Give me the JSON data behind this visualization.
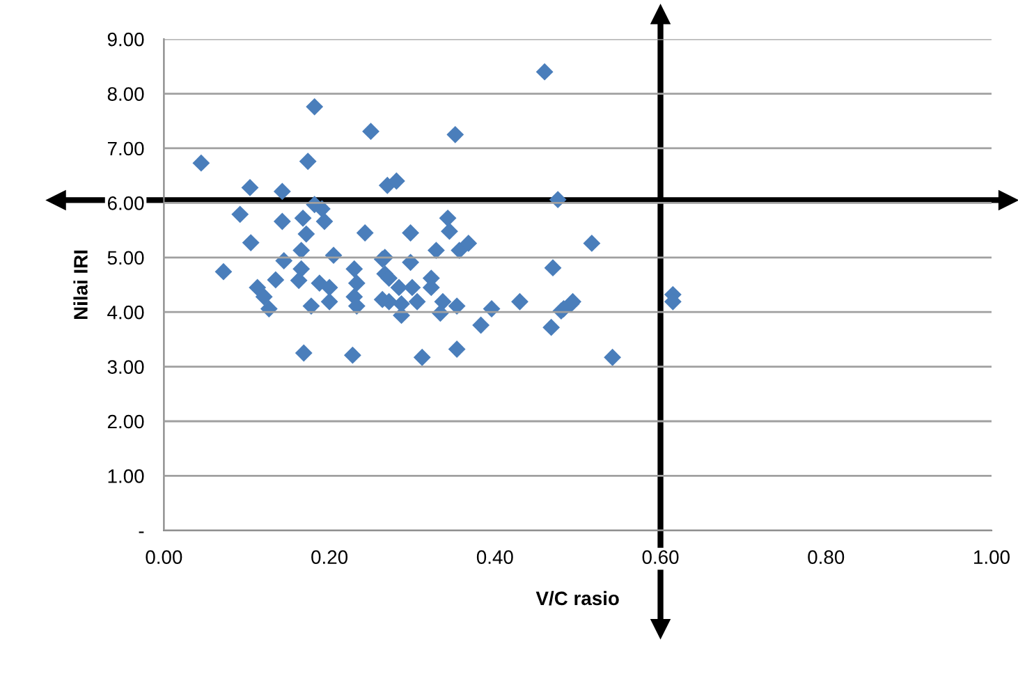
{
  "chart_data": {
    "type": "scatter",
    "xlabel": "V/C rasio",
    "ylabel": "Nilai IRI",
    "series": [
      {
        "color": "#4a7ebb",
        "x": [
          0.182,
          0.25,
          0.045,
          0.174,
          0.104,
          0.143,
          0.27,
          0.281,
          0.182,
          0.191,
          0.092,
          0.143,
          0.168,
          0.194,
          0.172,
          0.243,
          0.298,
          0.105,
          0.166,
          0.205,
          0.145,
          0.072,
          0.135,
          0.166,
          0.113,
          0.121,
          0.127,
          0.163,
          0.188,
          0.2,
          0.178,
          0.2,
          0.23,
          0.233,
          0.23,
          0.233,
          0.264,
          0.267,
          0.272,
          0.287,
          0.298,
          0.3,
          0.306,
          0.169,
          0.228,
          0.312,
          0.352,
          0.476,
          0.343,
          0.345,
          0.329,
          0.357,
          0.368,
          0.517,
          0.267,
          0.272,
          0.284,
          0.323,
          0.323,
          0.47,
          0.264,
          0.287,
          0.337,
          0.354,
          0.334,
          0.396,
          0.43,
          0.48,
          0.494,
          0.383,
          0.468,
          0.354,
          0.615,
          0.615,
          0.492,
          0.483,
          0.542,
          0.46
        ],
        "values": [
          7.76,
          7.31,
          6.73,
          6.76,
          6.28,
          6.21,
          6.32,
          6.4,
          5.97,
          5.89,
          5.79,
          5.66,
          5.72,
          5.66,
          5.43,
          5.45,
          5.45,
          5.27,
          5.13,
          5.04,
          4.94,
          4.74,
          4.59,
          4.79,
          4.45,
          4.28,
          4.06,
          4.58,
          4.53,
          4.45,
          4.11,
          4.19,
          4.79,
          4.53,
          4.28,
          4.11,
          4.97,
          4.7,
          4.19,
          3.94,
          4.91,
          4.45,
          4.19,
          3.25,
          3.21,
          3.17,
          7.25,
          6.06,
          5.72,
          5.48,
          5.13,
          5.13,
          5.26,
          5.26,
          5.0,
          4.62,
          4.45,
          4.62,
          4.45,
          4.81,
          4.23,
          4.15,
          4.19,
          4.11,
          3.98,
          4.06,
          4.19,
          4.02,
          4.19,
          3.76,
          3.72,
          3.32,
          4.32,
          4.19,
          4.15,
          4.06,
          3.17,
          8.4
        ]
      }
    ],
    "marker": "diamond",
    "xlim": [
      0,
      1
    ],
    "xticks": [
      {
        "value": 0,
        "label": "0.00"
      },
      {
        "value": 0.2,
        "label": "0.20"
      },
      {
        "value": 0.4,
        "label": "0.40"
      },
      {
        "value": 0.6,
        "label": "0.60"
      },
      {
        "value": 0.8,
        "label": "0.80"
      },
      {
        "value": 1,
        "label": "1.00"
      }
    ],
    "ylim": [
      0,
      9
    ],
    "yticks": [
      {
        "value": 0,
        "label": "-"
      },
      {
        "value": 1,
        "label": "1.00"
      },
      {
        "value": 2,
        "label": "2.00"
      },
      {
        "value": 3,
        "label": "3.00"
      },
      {
        "value": 4,
        "label": "4.00"
      },
      {
        "value": 5,
        "label": "5.00"
      },
      {
        "value": 6,
        "label": "6.00"
      },
      {
        "value": 7,
        "label": "7.00"
      },
      {
        "value": 8,
        "label": "8.00"
      },
      {
        "value": 9,
        "label": "9.00"
      }
    ],
    "grid": "y",
    "ref_lines": [
      {
        "axis": "y",
        "value": 6.05,
        "color": "#000000"
      },
      {
        "axis": "x",
        "value": 0.6,
        "color": "#000000"
      }
    ]
  }
}
